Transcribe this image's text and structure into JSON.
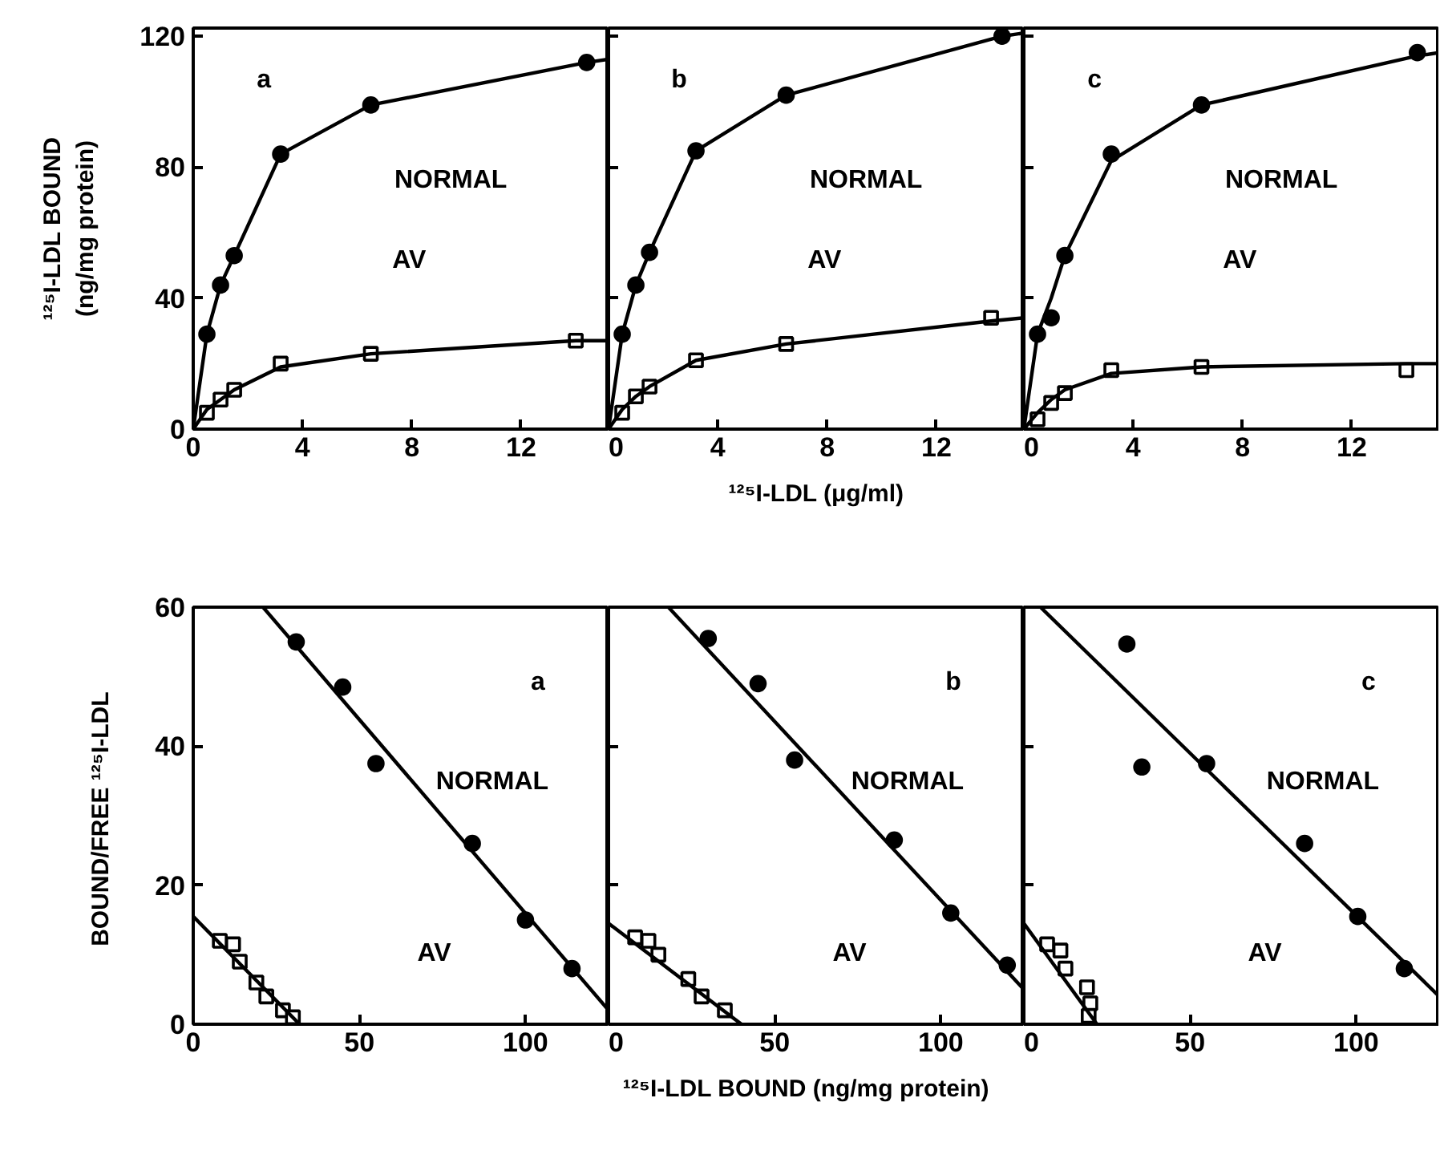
{
  "chart_data": [
    {
      "type": "scatter",
      "ylabel": "¹²⁵I-LDL BOUND\n(ng/mg protein)",
      "xlim": [
        0,
        15.2
      ],
      "ylim": [
        0,
        122.5
      ],
      "xticks": [
        0,
        4,
        8,
        12
      ],
      "yticks": [
        0,
        40,
        80,
        120
      ],
      "grid": false,
      "annotations": [
        "a",
        "NORMAL",
        "AV"
      ],
      "series": [
        {
          "marker": "circle",
          "color": "#000000",
          "x": [
            0.5,
            1,
            1.5,
            3.2,
            6.5,
            14.4
          ],
          "values": [
            29,
            44,
            53,
            84,
            99,
            112
          ]
        },
        {
          "type": "line",
          "marker": "none",
          "line_style": "solid",
          "color": "#000000",
          "x": [
            0,
            0.5,
            1,
            1.5,
            3.2,
            6.5,
            14.4,
            15.2
          ],
          "values": [
            0,
            29,
            44,
            53,
            84,
            99,
            112,
            113
          ]
        },
        {
          "marker": "square",
          "color": "#000000",
          "x": [
            0.5,
            1,
            1.5,
            3.2,
            6.5,
            14.0
          ],
          "values": [
            5,
            9,
            12,
            20,
            23,
            27
          ]
        },
        {
          "type": "line",
          "marker": "none",
          "line_style": "solid",
          "color": "#000000",
          "x": [
            0,
            0.5,
            1,
            1.5,
            3.2,
            6.5,
            14.0,
            15.2
          ],
          "values": [
            0,
            6,
            9,
            12,
            19,
            23,
            27,
            27
          ]
        }
      ]
    },
    {
      "type": "scatter",
      "xlabel": "¹²⁵I-LDL (μg/ml)",
      "tick_labels": "x",
      "xlim": [
        0,
        15.2
      ],
      "ylim": [
        0,
        122.5
      ],
      "xticks": [
        0,
        4,
        8,
        12
      ],
      "yticks": [
        0,
        40,
        80,
        120
      ],
      "grid": false,
      "annotations": [
        "b",
        "NORMAL",
        "AV"
      ],
      "series": [
        {
          "marker": "circle",
          "color": "#000000",
          "x": [
            0.5,
            1,
            1.5,
            3.2,
            6.5,
            14.4
          ],
          "values": [
            29,
            44,
            54,
            85,
            102,
            120
          ]
        },
        {
          "type": "line",
          "marker": "none",
          "line_style": "solid",
          "color": "#000000",
          "x": [
            0,
            0.5,
            1,
            1.5,
            3.2,
            6.5,
            14.4,
            15.2
          ],
          "values": [
            0,
            29,
            44,
            54,
            85,
            102,
            120,
            121
          ]
        },
        {
          "marker": "square",
          "color": "#000000",
          "x": [
            0.5,
            1,
            1.5,
            3.2,
            6.5,
            14.0
          ],
          "values": [
            5,
            10,
            13,
            21,
            26,
            34
          ]
        },
        {
          "type": "line",
          "marker": "none",
          "line_style": "solid",
          "color": "#000000",
          "x": [
            0,
            0.5,
            1,
            1.5,
            3.2,
            6.5,
            14.0,
            15.2
          ],
          "values": [
            0,
            6,
            10,
            13,
            21,
            26,
            33,
            34
          ]
        }
      ]
    },
    {
      "type": "scatter",
      "tick_labels": "x",
      "xlim": [
        0,
        15.2
      ],
      "ylim": [
        0,
        122.5
      ],
      "xticks": [
        0,
        4,
        8,
        12
      ],
      "yticks": [
        0,
        40,
        80,
        120
      ],
      "grid": false,
      "annotations": [
        "c",
        "NORMAL",
        "AV"
      ],
      "series": [
        {
          "marker": "circle",
          "color": "#000000",
          "x": [
            0.5,
            1,
            1.5,
            3.2,
            6.5,
            14.4
          ],
          "values": [
            29,
            34,
            53,
            84,
            99,
            115
          ]
        },
        {
          "type": "line",
          "marker": "none",
          "line_style": "solid",
          "color": "#000000",
          "x": [
            0,
            0.5,
            1,
            1.5,
            3.2,
            6.5,
            14.4,
            15.2
          ],
          "values": [
            0,
            29,
            40,
            53,
            82,
            99,
            114,
            115
          ]
        },
        {
          "marker": "square",
          "color": "#000000",
          "x": [
            0.5,
            1,
            1.5,
            3.2,
            6.5,
            14.0
          ],
          "values": [
            3,
            8,
            11,
            18,
            19,
            18
          ]
        },
        {
          "type": "line",
          "marker": "none",
          "line_style": "solid",
          "color": "#000000",
          "x": [
            0,
            0.5,
            1,
            1.5,
            3.2,
            6.5,
            14.0,
            15.2
          ],
          "values": [
            0,
            5,
            9,
            12,
            17,
            19,
            20,
            20
          ]
        }
      ]
    },
    {
      "type": "scatter",
      "ylabel": "BOUND/FREE  ¹²⁵I-LDL",
      "xlim": [
        0,
        125
      ],
      "ylim": [
        0,
        60
      ],
      "xticks": [
        0,
        50,
        100
      ],
      "yticks": [
        0,
        20,
        40,
        60
      ],
      "grid": false,
      "annotations": [
        "a",
        "NORMAL",
        "AV"
      ],
      "series": [
        {
          "marker": "circle",
          "color": "#000000",
          "x": [
            31,
            45,
            55,
            84,
            100,
            114
          ],
          "values": [
            55,
            48.5,
            37.5,
            26,
            15,
            8
          ]
        },
        {
          "type": "line",
          "marker": "none",
          "line_style": "solid",
          "color": "#000000",
          "x": [
            21,
            125
          ],
          "values": [
            60,
            2
          ]
        },
        {
          "marker": "square",
          "color": "#000000",
          "x": [
            8,
            12,
            14,
            19,
            22,
            27,
            30
          ],
          "values": [
            12,
            11.5,
            9,
            6,
            4,
            2,
            1
          ]
        },
        {
          "type": "line",
          "marker": "none",
          "line_style": "solid",
          "color": "#000000",
          "x": [
            0,
            32
          ],
          "values": [
            15.5,
            0
          ]
        }
      ]
    },
    {
      "type": "scatter",
      "xlabel": "¹²⁵I-LDL BOUND    (ng/mg protein)",
      "tick_labels": "x",
      "xlim": [
        0,
        125
      ],
      "ylim": [
        0,
        60
      ],
      "xticks": [
        0,
        50,
        100
      ],
      "yticks": [
        0,
        20,
        40,
        60
      ],
      "grid": false,
      "annotations": [
        "b",
        "NORMAL",
        "AV"
      ],
      "series": [
        {
          "marker": "circle",
          "color": "#000000",
          "x": [
            30,
            45,
            56,
            86,
            103,
            120
          ],
          "values": [
            55.5,
            49,
            38,
            26.5,
            16,
            8.5
          ]
        },
        {
          "type": "line",
          "marker": "none",
          "line_style": "solid",
          "color": "#000000",
          "x": [
            18,
            125
          ],
          "values": [
            60,
            5
          ]
        },
        {
          "marker": "square",
          "color": "#000000",
          "x": [
            8,
            12,
            15,
            24,
            28,
            35
          ],
          "values": [
            12.5,
            12,
            10,
            6.5,
            4,
            2
          ]
        },
        {
          "type": "line",
          "marker": "none",
          "line_style": "solid",
          "color": "#000000",
          "x": [
            0,
            40
          ],
          "values": [
            14.5,
            0
          ]
        }
      ]
    },
    {
      "type": "scatter",
      "tick_labels": "x",
      "xlim": [
        0,
        125
      ],
      "ylim": [
        0,
        60
      ],
      "xticks": [
        0,
        50,
        100
      ],
      "yticks": [
        0,
        20,
        40,
        60
      ],
      "grid": false,
      "annotations": [
        "c",
        "NORMAL",
        "AV"
      ],
      "series": [
        {
          "marker": "circle",
          "color": "#000000",
          "x": [
            31,
            35.5,
            55,
            84.5,
            100.5,
            114.5
          ],
          "values": [
            54.7,
            37,
            37.5,
            26,
            15.5,
            8
          ]
        },
        {
          "type": "line",
          "marker": "none",
          "line_style": "solid",
          "color": "#000000",
          "x": [
            5,
            125
          ],
          "values": [
            60,
            4
          ]
        },
        {
          "marker": "square",
          "color": "#000000",
          "x": [
            7,
            11,
            12.5,
            19,
            20,
            19.5
          ],
          "values": [
            11.5,
            10.6,
            8,
            5.3,
            3,
            1.2
          ]
        },
        {
          "type": "line",
          "marker": "none",
          "line_style": "solid",
          "color": "#000000",
          "x": [
            0,
            22
          ],
          "values": [
            14.5,
            0
          ]
        }
      ]
    }
  ]
}
